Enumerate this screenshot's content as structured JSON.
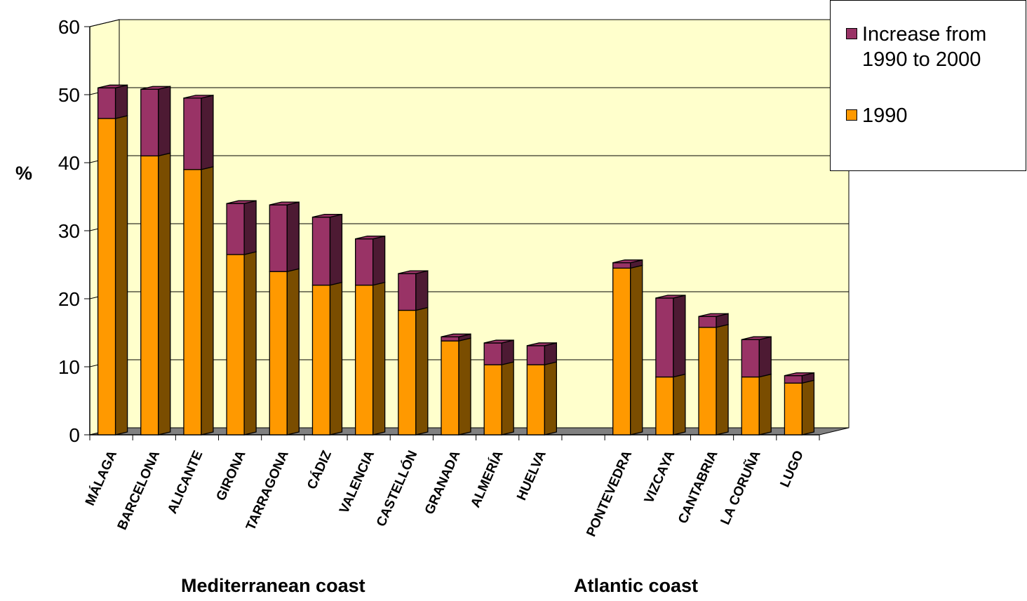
{
  "chart_data": {
    "type": "bar",
    "stacked": true,
    "three_d": true,
    "ylabel": "%",
    "ylim": [
      0,
      60
    ],
    "yticks": [
      0,
      10,
      20,
      30,
      40,
      50,
      60
    ],
    "grid": true,
    "legend_position": "top-right",
    "categories": [
      "MÁLAGA",
      "BARCELONA",
      "ALICANTE",
      "GIRONA",
      "TARRAGONA",
      "CÁDIZ",
      "VALENCIA",
      "CASTELLÓN",
      "GRANADA",
      "ALMERÍA",
      "HUELVA",
      "",
      "PONTEVEDRA",
      "VIZCAYA",
      "CANTABRIA",
      "LA CORUÑA",
      "LUGO"
    ],
    "series": [
      {
        "name": "1990",
        "color": "#ff9900",
        "values": [
          46.5,
          41,
          39,
          26.5,
          24,
          22,
          22,
          18.3,
          13.8,
          10.3,
          10.3,
          null,
          24.5,
          8.5,
          15.8,
          8.5,
          7.6
        ]
      },
      {
        "name": "Increase from 1990 to 2000",
        "color": "#993366",
        "values": [
          4.5,
          9.8,
          10.5,
          7.5,
          9.8,
          10,
          6.8,
          5.4,
          0.6,
          3.2,
          2.8,
          null,
          0.8,
          11.6,
          1.6,
          5.5,
          1.1
        ]
      }
    ],
    "groups": [
      {
        "label": "Mediterranean coast"
      },
      {
        "label": "Atlantic coast"
      }
    ]
  },
  "legend": {
    "items": [
      {
        "label": "Increase from 1990 to 2000",
        "color": "#993366"
      },
      {
        "label": "1990",
        "color": "#ff9900"
      }
    ]
  },
  "colors": {
    "plot_wall": "#ffffcc",
    "floor": "#808080",
    "base_front": "#ff9900",
    "base_side": "#7a4d00",
    "inc_front": "#993366",
    "inc_side": "#4d1a33"
  }
}
